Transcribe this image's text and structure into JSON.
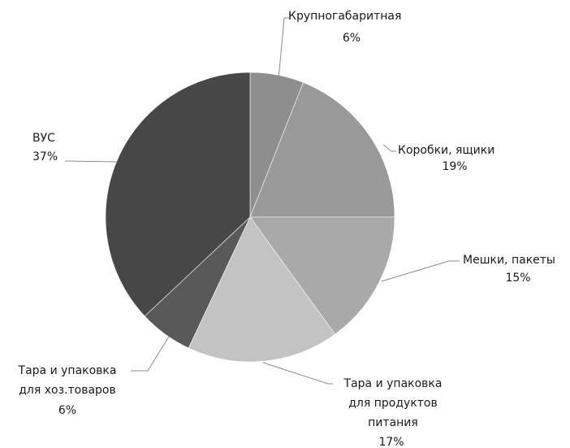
{
  "chart_data": {
    "type": "pie",
    "slices": [
      {
        "name": "Крупногабаритная",
        "value": 6,
        "pct_label": "6%",
        "color": "#8e8e8e"
      },
      {
        "name": "Коробки, ящики",
        "value": 19,
        "pct_label": "19%",
        "color": "#999999"
      },
      {
        "name": "Мешки, пакеты",
        "value": 15,
        "pct_label": "15%",
        "color": "#a9a9a9"
      },
      {
        "name": "Тара и упаковка для продуктов питания",
        "value": 17,
        "pct_label": "17%",
        "color": "#c3c3c3"
      },
      {
        "name": "Тара и упаковка для хоз.товаров",
        "value": 6,
        "pct_label": "6%",
        "color": "#595959"
      },
      {
        "name": "ВУС",
        "value": 37,
        "pct_label": "37%",
        "color": "#474747"
      }
    ],
    "labels": {
      "s0": {
        "line1": "Крупногабаритная",
        "pct": "6%"
      },
      "s1": {
        "line1": "Коробки, ящики",
        "pct": "19%"
      },
      "s2": {
        "line1": "Мешки, пакеты",
        "pct": "15%"
      },
      "s3": {
        "line1": "Тара и упаковка",
        "line2": "для продуктов",
        "line3": "питания",
        "pct": "17%"
      },
      "s4": {
        "line1": "Тара и упаковка",
        "line2": "для хоз.товаров",
        "pct": "6%"
      },
      "s5": {
        "line1": "ВУС",
        "pct": "37%"
      }
    },
    "start_angle": "12 o'clock",
    "direction": "clockwise",
    "legend": "none (inline labels)"
  }
}
